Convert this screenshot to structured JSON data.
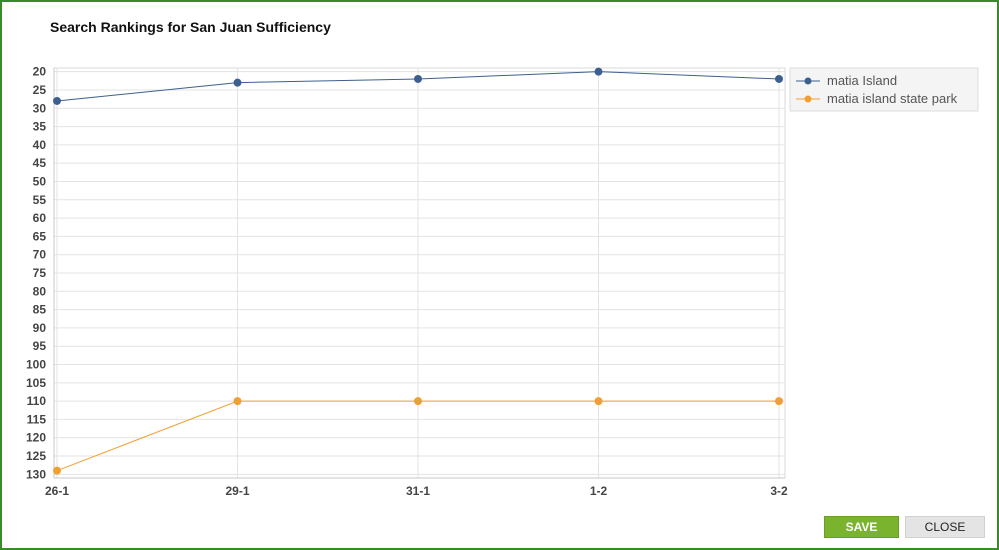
{
  "dialog": {
    "title": "Search Rankings for San Juan Sufficiency",
    "save_label": "SAVE",
    "close_label": "CLOSE"
  },
  "chart_data": {
    "type": "line",
    "title": "Search Rankings for San Juan Sufficiency",
    "xlabel": "",
    "ylabel": "",
    "categories": [
      "26-1",
      "29-1",
      "31-1",
      "1-2",
      "3-2"
    ],
    "ylim": [
      19,
      131
    ],
    "y_inverted": true,
    "y_ticks": [
      20,
      25,
      30,
      35,
      40,
      45,
      50,
      55,
      60,
      65,
      70,
      75,
      80,
      85,
      90,
      95,
      100,
      105,
      110,
      115,
      120,
      125,
      130
    ],
    "grid": true,
    "legend_position": "top-right",
    "series": [
      {
        "name": "matia Island",
        "color": "#3d5f8f",
        "values": [
          28,
          23,
          22,
          20,
          22
        ]
      },
      {
        "name": "matia island state park",
        "color": "#f0a030",
        "values": [
          129,
          110,
          110,
          110,
          110
        ]
      }
    ]
  }
}
